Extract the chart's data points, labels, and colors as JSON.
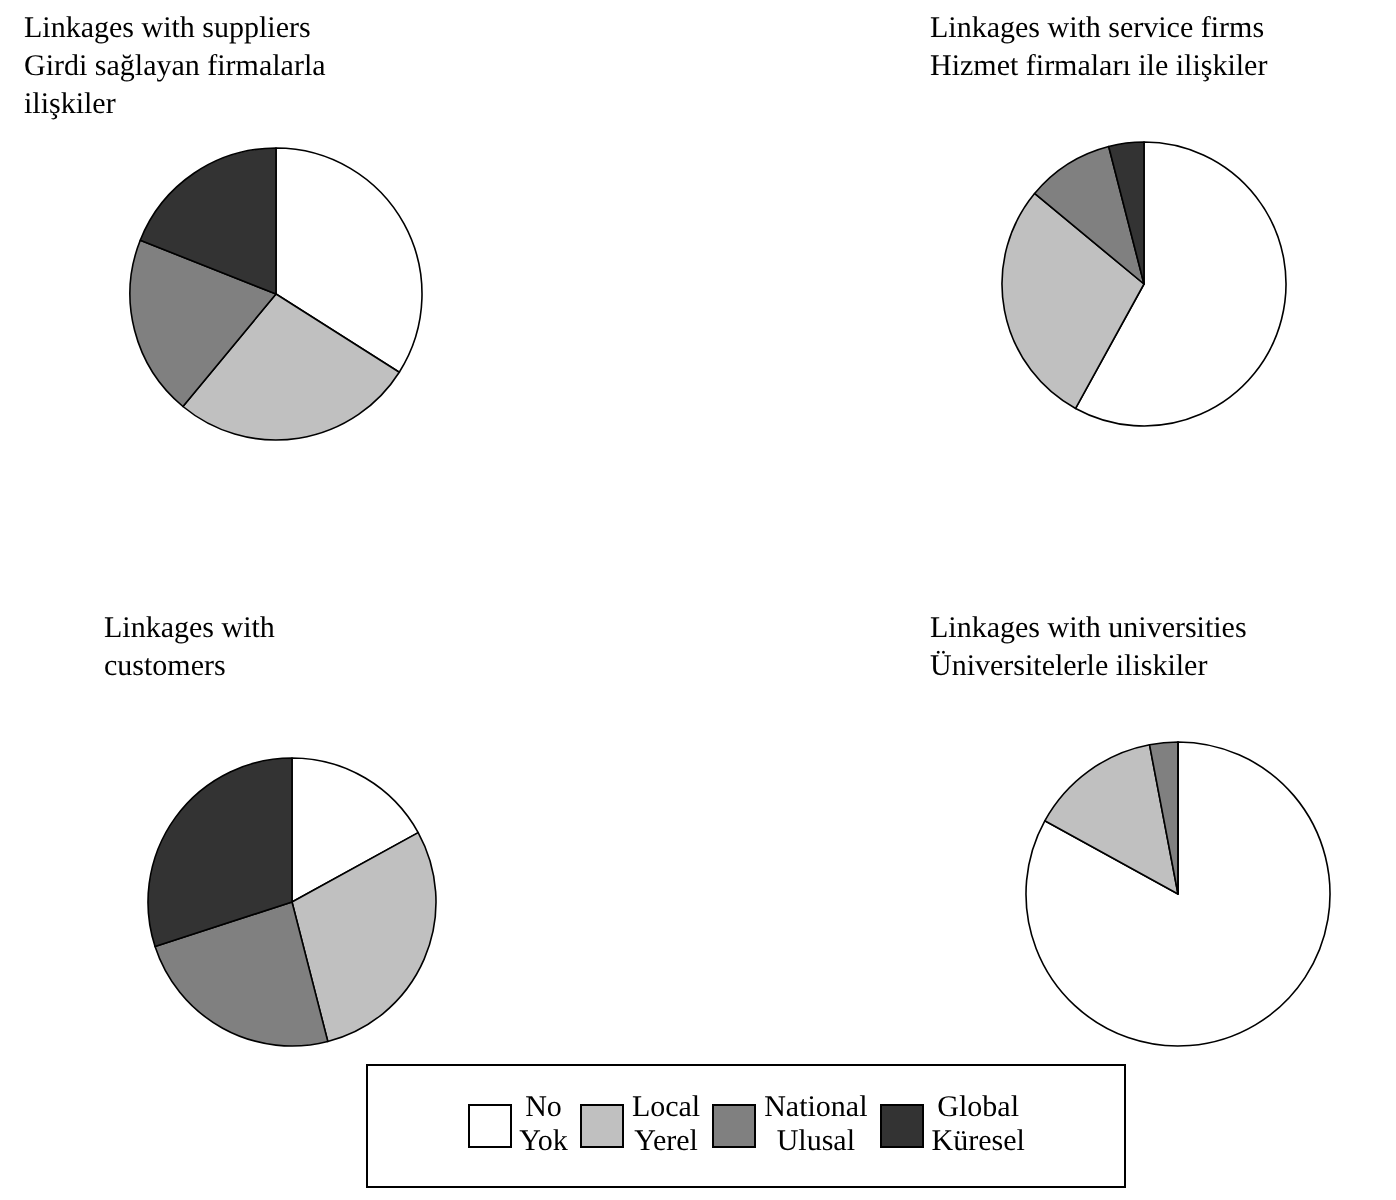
{
  "chart_data": [
    {
      "type": "pie",
      "title": "Linkages with suppliers\nGirdi sağlayan firmalarla\nilişkiler",
      "categories": [
        "No\nYok",
        "Local\nYerel",
        "National\nUlusal",
        "Global\nKüresel"
      ],
      "values": [
        34,
        27,
        20,
        19
      ],
      "colors": [
        "#ffffff",
        "#c0c0c0",
        "#808080",
        "#333333"
      ],
      "legend": "bottom"
    },
    {
      "type": "pie",
      "title": "Linkages with service firms\nHizmet firmaları ile ilişkiler",
      "categories": [
        null,
        null,
        null,
        null
      ],
      "values": [
        58,
        28,
        10,
        4
      ],
      "colors": [
        "#ffffff",
        "#c0c0c0",
        "#808080",
        "#333333"
      ]
    },
    {
      "type": "pie",
      "title": "Linkages with\ncustomers",
      "categories": [
        null,
        null,
        null,
        null
      ],
      "values": [
        17,
        29,
        24,
        30
      ],
      "colors": [
        "#ffffff",
        "#c0c0c0",
        "#808080",
        "#333333"
      ]
    },
    {
      "type": "pie",
      "title": "Linkages with universities\nÜniversitelerle iliskiler",
      "categories": [
        null,
        null,
        null,
        null
      ],
      "values": [
        83,
        14,
        3,
        0
      ],
      "colors": [
        "#ffffff",
        "#c0c0c0",
        "#808080",
        "#333333"
      ]
    }
  ]
}
